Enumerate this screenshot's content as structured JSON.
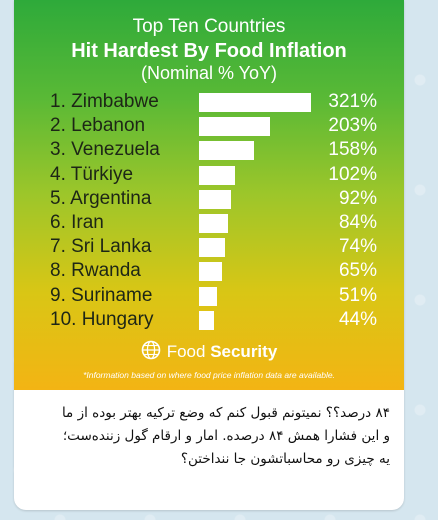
{
  "infographic": {
    "title_line1": "Top Ten Countries",
    "title_line2": "Hit Hardest By Food Inflation",
    "title_line3": "(Nominal % YoY)",
    "brand_prefix": "Food",
    "brand_suffix": "Security",
    "footnote": "*Information based on where food price inflation data are available."
  },
  "chart_data": {
    "type": "bar",
    "title": "Top Ten Countries Hit Hardest By Food Inflation",
    "subtitle": "(Nominal % YoY)",
    "categories": [
      "1. Zimbabwe",
      "2. Lebanon",
      "3. Venezuela",
      "4. Türkiye",
      "5. Argentina",
      "6. Iran",
      "7. Sri Lanka",
      "8. Rwanda",
      "9. Suriname",
      "10. Hungary"
    ],
    "values": [
      321,
      203,
      158,
      102,
      92,
      84,
      74,
      65,
      51,
      44
    ],
    "labels": [
      "321%",
      "203%",
      "158%",
      "102%",
      "92%",
      "84%",
      "74%",
      "65%",
      "51%",
      "44%"
    ],
    "xlim": [
      0,
      321
    ],
    "colors": {
      "bar": "#ffffff",
      "text": "#1d2616",
      "value": "#ffffff"
    }
  },
  "caption": {
    "line1": "۸۴ درصد؟؟ نمیتونم قبول کنم که وضع ترکیه بهتر بوده از ما",
    "line2": "و این فشارا همش ۸۴ درصده. امار و ارقام گول زننده‌ست؛",
    "line3": "یه چیزی رو محاسباتشون جا ننداختن؟"
  }
}
